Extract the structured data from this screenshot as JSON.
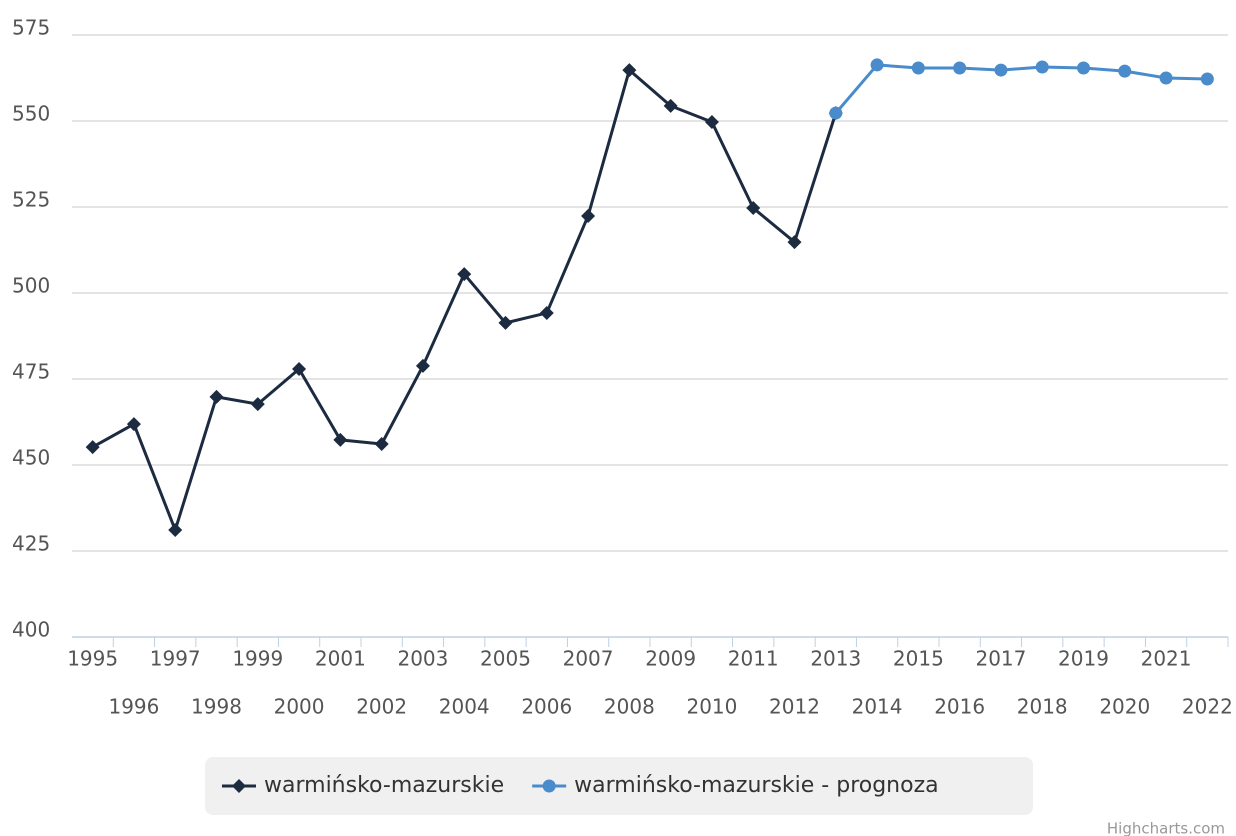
{
  "chart_data": {
    "type": "line",
    "categories": [
      "1995",
      "1996",
      "1997",
      "1998",
      "1999",
      "2000",
      "2001",
      "2002",
      "2003",
      "2004",
      "2005",
      "2006",
      "2007",
      "2008",
      "2009",
      "2010",
      "2011",
      "2012",
      "2013",
      "2014",
      "2015",
      "2016",
      "2017",
      "2018",
      "2019",
      "2020",
      "2021",
      "2022"
    ],
    "series": [
      {
        "name": "warmińsko-mazurskie",
        "color": "#1c2b40",
        "marker": "diamond",
        "values": [
          455.2,
          461.9,
          431.1,
          469.8,
          467.7,
          477.9,
          457.3,
          456.1,
          478.8,
          505.5,
          491.3,
          494.2,
          522.4,
          564.8,
          554.4,
          549.7,
          524.7,
          514.8,
          552.3,
          null,
          null,
          null,
          null,
          null,
          null,
          null,
          null,
          null
        ]
      },
      {
        "name": "warmińsko-mazurskie - prognoza",
        "color": "#4a8ccb",
        "marker": "circle",
        "values": [
          null,
          null,
          null,
          null,
          null,
          null,
          null,
          null,
          null,
          null,
          null,
          null,
          null,
          null,
          null,
          null,
          null,
          null,
          552.3,
          566.3,
          565.4,
          565.4,
          564.8,
          565.7,
          565.4,
          564.5,
          562.5,
          562.2
        ]
      }
    ],
    "ylim": [
      400,
      575
    ],
    "yticks": [
      400,
      425,
      450,
      475,
      500,
      525,
      550,
      575
    ],
    "grid": true,
    "legend": "bottom",
    "credits": "Highcharts.com"
  }
}
